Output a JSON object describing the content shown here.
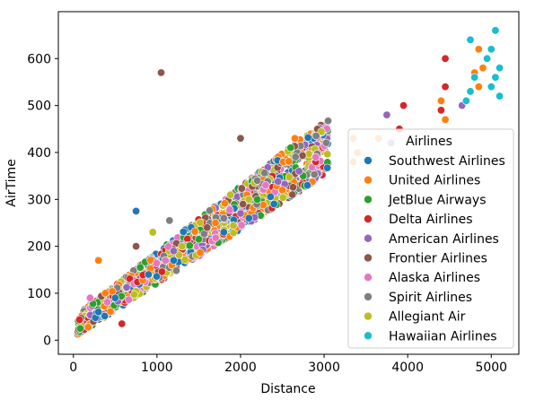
{
  "chart_data": {
    "type": "scatter",
    "xlabel": "Distance",
    "ylabel": "AirTime",
    "xlim": [
      -180,
      5330
    ],
    "ylim": [
      -30,
      700
    ],
    "xticks": [
      0,
      1000,
      2000,
      3000,
      4000,
      5000
    ],
    "yticks": [
      0,
      100,
      200,
      300,
      400,
      500,
      600
    ],
    "grid": false,
    "legend": {
      "title": "Airlines",
      "placement": "lower-right",
      "entries": [
        {
          "name": "Southwest Airlines",
          "color": "#1f77b4"
        },
        {
          "name": "United Airlines",
          "color": "#ff7f0e"
        },
        {
          "name": "JetBlue Airways",
          "color": "#2ca02c"
        },
        {
          "name": "Delta Airlines",
          "color": "#d62728"
        },
        {
          "name": "American Airlines",
          "color": "#9467bd"
        },
        {
          "name": "Frontier Airlines",
          "color": "#8c564b"
        },
        {
          "name": "Alaska Airlines",
          "color": "#e377c2"
        },
        {
          "name": "Spirit Airlines",
          "color": "#7f7f7f"
        },
        {
          "name": "Allegiant Air",
          "color": "#bcbd22"
        },
        {
          "name": "Hawaiian Airlines",
          "color": "#17becf"
        }
      ]
    },
    "band": {
      "description_free": true,
      "x_range": [
        50,
        3050
      ],
      "lower_slope": 0.115,
      "upper_slope": 0.14,
      "lower_intercept": 6,
      "upper_intercept": 48
    },
    "series": [
      {
        "name": "Southwest Airlines",
        "points": [
          [
            500,
            90
          ],
          [
            1200,
            170
          ],
          [
            1800,
            230
          ],
          [
            2400,
            290
          ],
          [
            2800,
            330
          ],
          [
            900,
            140
          ],
          [
            2100,
            260
          ],
          [
            300,
            60
          ]
        ]
      },
      {
        "name": "United Airlines",
        "points": [
          [
            3350,
            430
          ],
          [
            3400,
            400
          ],
          [
            3350,
            380
          ],
          [
            4400,
            510
          ],
          [
            4450,
            470
          ],
          [
            4850,
            620
          ],
          [
            4900,
            580
          ],
          [
            4800,
            570
          ],
          [
            4850,
            540
          ],
          [
            2650,
            430
          ],
          [
            300,
            170
          ],
          [
            1700,
            250
          ],
          [
            2500,
            320
          ],
          [
            3650,
            430
          ]
        ]
      },
      {
        "name": "JetBlue Airways",
        "points": [
          [
            2600,
            410
          ],
          [
            2200,
            300
          ],
          [
            1500,
            215
          ],
          [
            800,
            155
          ],
          [
            2750,
            350
          ]
        ]
      },
      {
        "name": "Delta Airlines",
        "points": [
          [
            580,
            35
          ],
          [
            4450,
            540
          ],
          [
            4400,
            490
          ],
          [
            3950,
            500
          ],
          [
            3900,
            450
          ],
          [
            4450,
            600
          ],
          [
            2900,
            380
          ]
        ]
      },
      {
        "name": "American Airlines",
        "points": [
          [
            3750,
            480
          ],
          [
            4650,
            500
          ],
          [
            3800,
            420
          ],
          [
            2000,
            270
          ],
          [
            2700,
            360
          ],
          [
            1200,
            190
          ]
        ]
      },
      {
        "name": "Frontier Airlines",
        "points": [
          [
            1050,
            570
          ],
          [
            2000,
            430
          ],
          [
            750,
            200
          ],
          [
            1600,
            240
          ]
        ]
      },
      {
        "name": "Alaska Airlines",
        "points": [
          [
            2900,
            390
          ],
          [
            2300,
            330
          ],
          [
            1100,
            170
          ],
          [
            200,
            90
          ]
        ]
      },
      {
        "name": "Spirit Airlines",
        "points": [
          [
            1150,
            255
          ],
          [
            2200,
            340
          ],
          [
            1800,
            260
          ]
        ]
      },
      {
        "name": "Allegiant Air",
        "points": [
          [
            950,
            230
          ],
          [
            1300,
            200
          ]
        ]
      },
      {
        "name": "Hawaiian Airlines",
        "points": [
          [
            5050,
            660
          ],
          [
            4750,
            640
          ],
          [
            5000,
            620
          ],
          [
            4950,
            600
          ],
          [
            5100,
            580
          ],
          [
            4800,
            560
          ],
          [
            5000,
            540
          ],
          [
            4750,
            530
          ],
          [
            5100,
            520
          ],
          [
            4700,
            510
          ],
          [
            5050,
            560
          ]
        ]
      },
      {
        "name": "Southwest Airlines",
        "points": [
          [
            750,
            275
          ]
        ]
      }
    ]
  }
}
